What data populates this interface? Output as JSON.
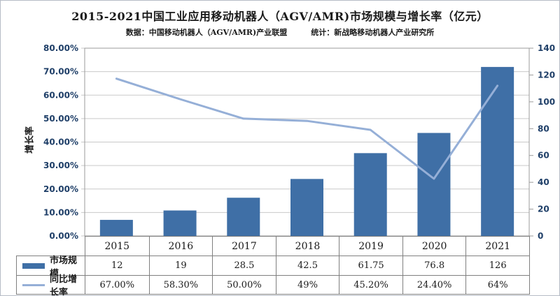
{
  "header": {
    "title": "2015-2021中国工业应用移动机器人（AGV/AMR)市场规模与增长率（亿元）",
    "source_left": "数据：中国移动机器人（AGV/AMR)产业联盟",
    "source_right": "统计：新战略移动机器人产业研究所"
  },
  "colors": {
    "bar": "#3f6fa6",
    "line": "#95afd7",
    "tick_label": "#1f3f68",
    "grid": "#c9c9c9",
    "axis": "#9b9b9b",
    "table_border": "#808080",
    "frame_border": "#b6bcc6"
  },
  "chart_data": {
    "type": [
      "bar",
      "line"
    ],
    "title": "2015-2021中国工业应用移动机器人（AGV/AMR)市场规模与增长率（亿元）",
    "categories": [
      "2015",
      "2016",
      "2017",
      "2018",
      "2019",
      "2020",
      "2021"
    ],
    "series": [
      {
        "name": "市场规模",
        "type": "bar",
        "axis": "right",
        "values": [
          12,
          19,
          28.5,
          42.5,
          61.75,
          76.8,
          126
        ],
        "display": [
          "12",
          "19",
          "28.5",
          "42.5",
          "61.75",
          "76.8",
          "126"
        ]
      },
      {
        "name": "同比增长率",
        "type": "line",
        "axis": "left",
        "values": [
          67,
          58.3,
          50,
          49,
          45.2,
          24.4,
          64
        ],
        "display": [
          "67.00%",
          "58.30%",
          "50.00%",
          "49%",
          "45.20%",
          "24.40%",
          "64%"
        ]
      }
    ],
    "left_axis": {
      "label": "增长率",
      "min": 0,
      "max": 80,
      "ticks": [
        "0.00%",
        "10.00%",
        "20.00%",
        "30.00%",
        "40.00%",
        "50.00%",
        "60.00%",
        "70.00%",
        "80.00%"
      ]
    },
    "right_axis": {
      "min": 0,
      "max": 140,
      "ticks": [
        "0",
        "20",
        "40",
        "60",
        "80",
        "100",
        "120",
        "140"
      ]
    },
    "grid": true,
    "legend_position": "table-left"
  }
}
